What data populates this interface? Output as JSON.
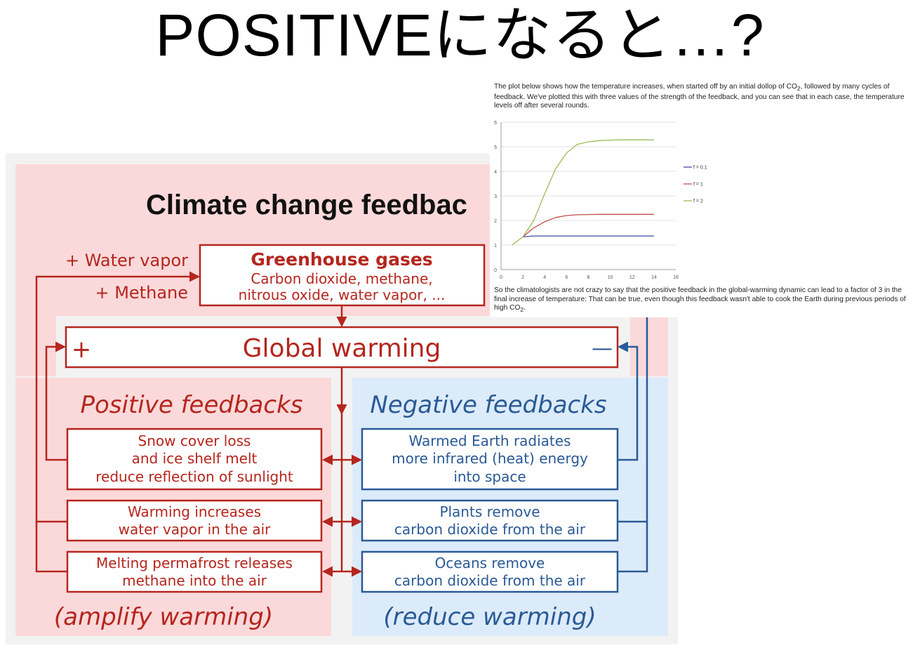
{
  "slide": {
    "title": "POSITIVEになると…?"
  },
  "diagram": {
    "title": "Climate change feedbac",
    "left_inputs": [
      "+ Water vapor",
      "+ Methane"
    ],
    "ghg_box": {
      "title": "Greenhouse gases",
      "lines": [
        "Carbon dioxide, methane,",
        "nitrous oxide, water vapor, ..."
      ]
    },
    "gw_box": {
      "title": "Global warming",
      "plus": "+",
      "minus": "—"
    },
    "positive": {
      "heading": "Positive feedbacks",
      "footer": "(amplify warming)",
      "boxes": [
        [
          "Snow cover loss",
          "and ice shelf melt",
          "reduce reflection of sunlight"
        ],
        [
          "Warming increases",
          "water vapor in the air"
        ],
        [
          "Melting permafrost releases",
          "methane into the air"
        ]
      ]
    },
    "negative": {
      "heading": "Negative feedbacks",
      "footer": "(reduce warming)",
      "boxes": [
        [
          "Warmed Earth radiates",
          "more infrared (heat) energy",
          "into space"
        ],
        [
          "Plants remove",
          "carbon dioxide from the air"
        ],
        [
          "Oceans remove",
          "carbon dioxide from the air"
        ]
      ]
    },
    "colors": {
      "red": "#b5261e",
      "blue": "#2a5a96",
      "pink_bg": "#fbd9da",
      "blue_bg": "#dcebfa",
      "gray_bg": "#f2f2f2"
    }
  },
  "text_panel": {
    "intro_a": "The plot below shows how the temperature increases, when started off by an initial dollop of CO",
    "intro_sub": "2",
    "intro_b": ", followed by many cycles of feedback. We've plotted this with three values of the strength of the feedback, and you can see that in each case, the temperature levels off after several rounds.",
    "outro_a": "So the climatologists are not crazy to say that the positive feedback in the global-warming dynamic can lead to a factor of 3 in the final increase of temperature: That can be true, even though this feedback wasn't able to cook the Earth during previous periods of high CO",
    "outro_sub": "2",
    "outro_b": "."
  },
  "chart_data": {
    "type": "line",
    "title": "",
    "xlabel": "",
    "ylabel": "",
    "xlim": [
      0,
      16
    ],
    "ylim": [
      0,
      6
    ],
    "xticks": [
      0,
      2,
      4,
      6,
      8,
      10,
      12,
      14,
      16
    ],
    "yticks": [
      0,
      1,
      2,
      3,
      4,
      5,
      6
    ],
    "grid": "horizontal",
    "legend_position": "right",
    "series": [
      {
        "name": "f = 0.1",
        "color": "#3a4fa0",
        "x": [
          2,
          3,
          4,
          5,
          6,
          7,
          8,
          9,
          10,
          11,
          12,
          13,
          14
        ],
        "y": [
          1.33,
          1.37,
          1.37,
          1.37,
          1.37,
          1.37,
          1.37,
          1.37,
          1.37,
          1.37,
          1.37,
          1.37,
          1.37
        ]
      },
      {
        "name": "f = 1",
        "color": "#c0504d",
        "x": [
          2,
          3,
          4,
          5,
          6,
          7,
          8,
          9,
          10,
          11,
          12,
          13,
          14
        ],
        "y": [
          1.33,
          1.7,
          1.95,
          2.12,
          2.2,
          2.23,
          2.24,
          2.25,
          2.25,
          2.25,
          2.25,
          2.25,
          2.25
        ]
      },
      {
        "name": "f = 2",
        "color": "#9bbb59",
        "x": [
          1,
          2,
          3,
          4,
          5,
          6,
          7,
          8,
          9,
          10,
          11,
          12,
          13,
          14
        ],
        "y": [
          1.0,
          1.33,
          2.0,
          3.1,
          4.1,
          4.75,
          5.1,
          5.2,
          5.25,
          5.27,
          5.28,
          5.28,
          5.28,
          5.28
        ]
      }
    ]
  }
}
